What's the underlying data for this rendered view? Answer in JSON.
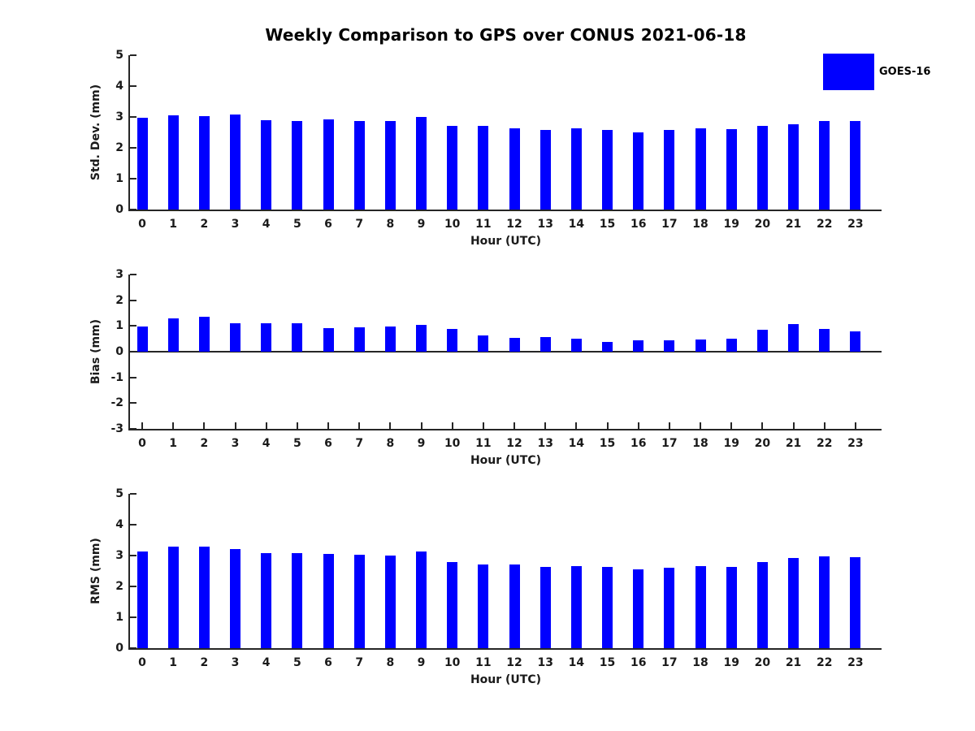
{
  "title": "Weekly Comparison to GPS over CONUS 2021-06-18",
  "legend": {
    "label": "GOES-16",
    "position": "top-right-outside"
  },
  "colors": {
    "bar": "#0000ff",
    "axis": "#262626",
    "tick_text": "#1a1a1a",
    "title_text": "#000000",
    "background": "#ffffff"
  },
  "chart_data": [
    {
      "type": "bar",
      "title": "",
      "ylabel": "Std. Dev. (mm)",
      "xlabel": "Hour (UTC)",
      "ylim": [
        0,
        5
      ],
      "yticks": [
        0,
        1,
        2,
        3,
        4,
        5
      ],
      "grid": false,
      "categories": [
        "0",
        "1",
        "2",
        "3",
        "4",
        "5",
        "6",
        "7",
        "8",
        "9",
        "10",
        "11",
        "12",
        "13",
        "14",
        "15",
        "16",
        "17",
        "18",
        "19",
        "20",
        "21",
        "22",
        "23"
      ],
      "series": [
        {
          "name": "GOES-16",
          "values": [
            2.98,
            3.05,
            3.02,
            3.08,
            2.9,
            2.88,
            2.93,
            2.88,
            2.88,
            3.0,
            2.7,
            2.7,
            2.64,
            2.57,
            2.64,
            2.58,
            2.51,
            2.58,
            2.62,
            2.61,
            2.71,
            2.76,
            2.87,
            2.87
          ]
        }
      ]
    },
    {
      "type": "bar",
      "title": "",
      "ylabel": "Bias (mm)",
      "xlabel": "Hour (UTC)",
      "ylim": [
        -3,
        3
      ],
      "yticks": [
        -3,
        -2,
        -1,
        0,
        1,
        2,
        3
      ],
      "grid": false,
      "categories": [
        "0",
        "1",
        "2",
        "3",
        "4",
        "5",
        "6",
        "7",
        "8",
        "9",
        "10",
        "11",
        "12",
        "13",
        "14",
        "15",
        "16",
        "17",
        "18",
        "19",
        "20",
        "21",
        "22",
        "23"
      ],
      "series": [
        {
          "name": "GOES-16",
          "values": [
            0.97,
            1.3,
            1.35,
            1.1,
            1.12,
            1.12,
            0.92,
            0.95,
            0.97,
            1.05,
            0.87,
            0.62,
            0.55,
            0.58,
            0.52,
            0.37,
            0.43,
            0.43,
            0.47,
            0.5,
            0.85,
            1.07,
            0.88,
            0.8
          ]
        }
      ]
    },
    {
      "type": "bar",
      "title": "",
      "ylabel": "RMS (mm)",
      "xlabel": "Hour (UTC)",
      "ylim": [
        0,
        5
      ],
      "yticks": [
        0,
        1,
        2,
        3,
        4,
        5
      ],
      "grid": false,
      "categories": [
        "0",
        "1",
        "2",
        "3",
        "4",
        "5",
        "6",
        "7",
        "8",
        "9",
        "10",
        "11",
        "12",
        "13",
        "14",
        "15",
        "16",
        "17",
        "18",
        "19",
        "20",
        "21",
        "22",
        "23"
      ],
      "series": [
        {
          "name": "GOES-16",
          "values": [
            3.12,
            3.28,
            3.28,
            3.22,
            3.08,
            3.08,
            3.05,
            3.02,
            3.0,
            3.13,
            2.8,
            2.72,
            2.7,
            2.62,
            2.67,
            2.62,
            2.54,
            2.6,
            2.65,
            2.64,
            2.8,
            2.92,
            2.97,
            2.95
          ]
        }
      ]
    }
  ]
}
